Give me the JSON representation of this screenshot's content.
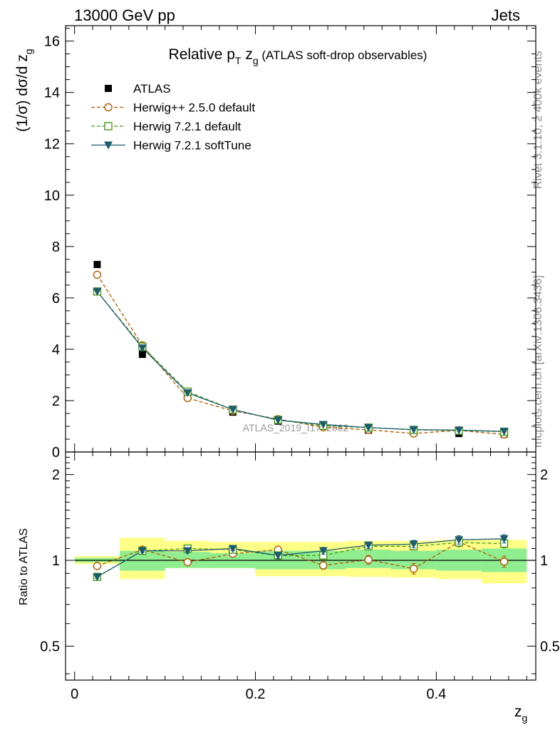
{
  "header": {
    "left": "13000 GeV pp",
    "right": "Jets"
  },
  "side_labels": {
    "rivet": "Rivet 3.1.10, ≥ 400k events",
    "mcplots": "mcplots.cern.ch [arXiv:1306.3436]"
  },
  "chart_data": [
    {
      "type": "line",
      "panel": "main",
      "title": "Relative p_T z_g (ATLAS soft-drop observables)",
      "title_main": "Relative p",
      "title_sub_T": "T",
      "title_z": " z",
      "title_sub_g": "g",
      "title_rest": " (ATLAS soft-drop observables)",
      "ylabel": "(1/σ) dσ/d z",
      "ylabel_sub": "g",
      "xlabel": "z",
      "xlabel_sub": "g",
      "watermark": "ATLAS_2019_I1772062",
      "xlim": [
        -0.01,
        0.51
      ],
      "ylim": [
        0,
        16.6
      ],
      "xticks": [
        0,
        0.2,
        0.4
      ],
      "xtick_labels": [
        "0",
        "0.2",
        "0.4"
      ],
      "yticks": [
        0,
        2,
        4,
        6,
        8,
        10,
        12,
        14,
        16
      ],
      "ytick_labels": [
        "0",
        "2",
        "4",
        "6",
        "8",
        "10",
        "12",
        "14",
        "16"
      ],
      "x": [
        0.025,
        0.075,
        0.125,
        0.175,
        0.225,
        0.275,
        0.325,
        0.375,
        0.425,
        0.475
      ],
      "series": [
        {
          "name": "ATLAS",
          "color": "#000000",
          "marker": "square-filled",
          "line": "none",
          "values": [
            7.3,
            3.8,
            2.15,
            1.55,
            1.2,
            1.0,
            0.85,
            0.77,
            0.72,
            0.69
          ]
        },
        {
          "name": "Herwig++ 2.5.0 default",
          "color": "#b35900",
          "marker": "circle-open",
          "line": "dashed",
          "values": [
            6.9,
            4.15,
            2.1,
            1.6,
            1.28,
            0.96,
            0.86,
            0.72,
            0.84,
            0.68
          ]
        },
        {
          "name": "Herwig 7.2.1 default",
          "color": "#4a9a1a",
          "marker": "square-open",
          "line": "dashed",
          "values": [
            6.25,
            4.1,
            2.35,
            1.65,
            1.25,
            1.02,
            0.95,
            0.86,
            0.83,
            0.79
          ]
        },
        {
          "name": "Herwig 7.2.1 softTune",
          "color": "#1d5c6e",
          "marker": "triangle-down-filled",
          "line": "solid",
          "values": [
            6.25,
            4.05,
            2.3,
            1.65,
            1.24,
            1.07,
            0.95,
            0.87,
            0.85,
            0.8
          ]
        }
      ]
    },
    {
      "type": "line",
      "panel": "ratio",
      "ylabel": "Ratio to ATLAS",
      "xlim": [
        -0.01,
        0.51
      ],
      "ylim": [
        0.38,
        2.4
      ],
      "yticks": [
        0.5,
        1,
        2
      ],
      "ytick_labels": [
        "0.5",
        "1",
        "2"
      ],
      "x": [
        0.025,
        0.075,
        0.125,
        0.175,
        0.225,
        0.275,
        0.325,
        0.375,
        0.425,
        0.475
      ],
      "bin_edges": [
        0,
        0.05,
        0.1,
        0.15,
        0.2,
        0.25,
        0.3,
        0.35,
        0.4,
        0.45,
        0.5
      ],
      "bands": {
        "stat_green": [
          [
            0.985,
            1.02
          ],
          [
            0.92,
            1.08
          ],
          [
            0.94,
            1.07
          ],
          [
            0.94,
            1.06
          ],
          [
            0.93,
            1.08
          ],
          [
            0.93,
            1.08
          ],
          [
            0.94,
            1.09
          ],
          [
            0.93,
            1.08
          ],
          [
            0.92,
            1.09
          ],
          [
            0.91,
            1.1
          ]
        ],
        "total_yellow": [
          [
            0.97,
            1.035
          ],
          [
            0.86,
            1.2
          ],
          [
            0.94,
            1.17
          ],
          [
            0.94,
            1.16
          ],
          [
            0.88,
            1.16
          ],
          [
            0.88,
            1.16
          ],
          [
            0.875,
            1.17
          ],
          [
            0.87,
            1.17
          ],
          [
            0.86,
            1.18
          ],
          [
            0.83,
            1.18
          ]
        ]
      },
      "reference_line": 1,
      "series": [
        {
          "name": "Herwig++ 2.5.0 default",
          "color": "#b35900",
          "marker": "circle-open",
          "line": "dashed",
          "values": [
            0.955,
            1.09,
            0.985,
            1.055,
            1.09,
            0.96,
            1.005,
            0.935,
            1.16,
            0.99
          ],
          "errors": [
            0.01,
            0.015,
            0.02,
            0.02,
            0.025,
            0.03,
            0.035,
            0.04,
            0.04,
            0.045
          ]
        },
        {
          "name": "Herwig 7.2.1 default",
          "color": "#4a9a1a",
          "marker": "square-open",
          "line": "dashed",
          "values": [
            0.875,
            1.08,
            1.1,
            1.09,
            1.04,
            1.04,
            1.12,
            1.12,
            1.155,
            1.145
          ],
          "errors": [
            0.01,
            0.015,
            0.02,
            0.02,
            0.025,
            0.03,
            0.03,
            0.035,
            0.04,
            0.04
          ]
        },
        {
          "name": "Herwig 7.2.1 softTune",
          "color": "#1d5c6e",
          "marker": "triangle-down-filled",
          "line": "solid",
          "values": [
            0.875,
            1.08,
            1.08,
            1.1,
            1.04,
            1.08,
            1.13,
            1.14,
            1.18,
            1.19
          ],
          "errors": [
            0.01,
            0.015,
            0.02,
            0.02,
            0.025,
            0.03,
            0.03,
            0.035,
            0.04,
            0.04
          ]
        }
      ]
    }
  ]
}
